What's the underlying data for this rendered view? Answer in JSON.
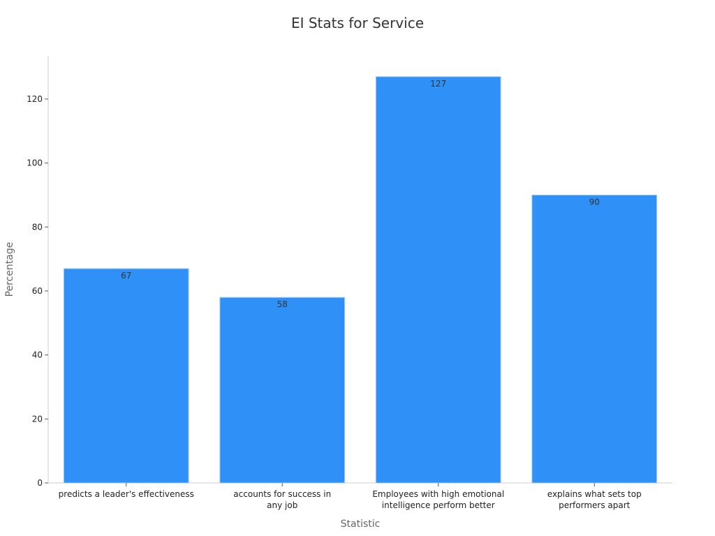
{
  "chart_data": {
    "type": "bar",
    "title": "EI Stats for Service",
    "xlabel": "Statistic",
    "ylabel": "Percentage",
    "categories": [
      "predicts a leader's effectiveness",
      "accounts for success in any job",
      "Employees with high emotional intelligence perform better",
      "explains what sets top performers apart"
    ],
    "category_lines": [
      [
        "predicts a leader's effectiveness"
      ],
      [
        "accounts for success in",
        "any job"
      ],
      [
        "Employees with high emotional",
        "intelligence perform better"
      ],
      [
        "explains what sets top",
        "performers apart"
      ]
    ],
    "values": [
      67,
      58,
      127,
      90
    ],
    "data_labels": [
      "67",
      "58",
      "127",
      "90"
    ],
    "yticks": [
      0,
      20,
      40,
      60,
      80,
      100,
      120
    ],
    "ylim": [
      0,
      133.5
    ],
    "grid": false,
    "legend": "none",
    "bar_color": "#2f91f8",
    "bar_edge_color": "#a8cdf7",
    "axis_color": "#cccccc"
  }
}
